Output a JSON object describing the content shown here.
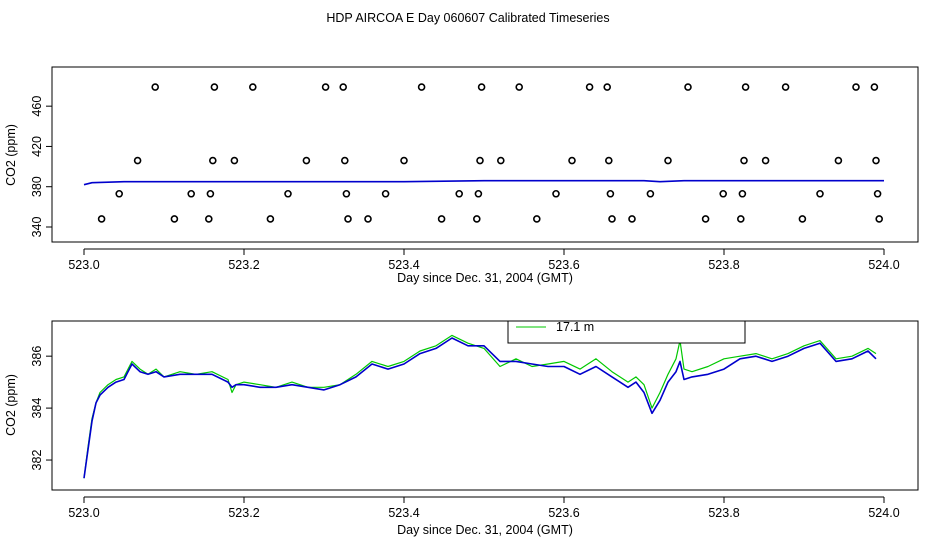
{
  "title": "HDP AIRCOA E  Day 060607  Calibrated Timeseries",
  "colors": {
    "green": "#00c800",
    "blue": "#0000cc",
    "axis": "#000000"
  },
  "chart_data": [
    {
      "type": "scatter",
      "xlabel": "Day since Dec. 31, 2004 (GMT)",
      "ylabel": "CO2 (ppm)",
      "xlim": [
        523.0,
        524.0
      ],
      "ylim": [
        338,
        484
      ],
      "xticks": [
        "523.0",
        "523.2",
        "523.4",
        "523.6",
        "523.8",
        "524.0"
      ],
      "xtick_values": [
        523.0,
        523.2,
        523.4,
        523.6,
        523.8,
        524.0
      ],
      "yticks": [
        "340",
        "380",
        "420",
        "460"
      ],
      "ytick_values": [
        340,
        380,
        420,
        460
      ],
      "series": [
        {
          "style": "points",
          "x": [
            523.022,
            523.044,
            523.067,
            523.089,
            523.113,
            523.134,
            523.156,
            523.158,
            523.161,
            523.163,
            523.188,
            523.211,
            523.233,
            523.255,
            523.278,
            523.302,
            523.324,
            523.326,
            523.328,
            523.33,
            523.355,
            523.377,
            523.4,
            523.422,
            523.447,
            523.469,
            523.491,
            523.493,
            523.495,
            523.497,
            523.521,
            523.544,
            523.566,
            523.59,
            523.61,
            523.632,
            523.654,
            523.656,
            523.658,
            523.66,
            523.685,
            523.708,
            523.73,
            523.755,
            523.777,
            523.799,
            523.821,
            523.823,
            523.825,
            523.827,
            523.852,
            523.877,
            523.898,
            523.92,
            523.943,
            523.965,
            523.988,
            523.99,
            523.992,
            523.994
          ],
          "y": [
            348,
            373,
            406,
            479,
            348,
            373,
            348,
            373,
            406,
            479,
            406,
            479,
            348,
            373,
            406,
            479,
            479,
            406,
            373,
            348,
            348,
            373,
            406,
            479,
            348,
            373,
            348,
            373,
            406,
            479,
            406,
            479,
            348,
            373,
            406,
            479,
            479,
            406,
            373,
            348,
            348,
            373,
            406,
            479,
            348,
            373,
            348,
            373,
            406,
            479,
            406,
            479,
            348,
            373,
            406,
            479,
            479,
            406,
            373,
            348
          ]
        },
        {
          "style": "line-blue",
          "x": [
            523.0,
            523.01,
            523.05,
            523.1,
            523.2,
            523.3,
            523.4,
            523.5,
            523.6,
            523.7,
            523.72,
            523.75,
            523.8,
            523.9,
            524.0
          ],
          "y": [
            382,
            384,
            385,
            385,
            385,
            385,
            385,
            386,
            386,
            386,
            385,
            386,
            386,
            386,
            386
          ]
        }
      ]
    },
    {
      "type": "line",
      "xlabel": "Day since Dec. 31, 2004 (GMT)",
      "ylabel": "CO2 (ppm)",
      "xlim": [
        523.0,
        524.0
      ],
      "ylim": [
        381.0,
        387.2
      ],
      "xticks": [
        "523.0",
        "523.2",
        "523.4",
        "523.6",
        "523.8",
        "524.0"
      ],
      "xtick_values": [
        523.0,
        523.2,
        523.4,
        523.6,
        523.8,
        524.0
      ],
      "yticks": [
        "382",
        "384",
        "386"
      ],
      "ytick_values": [
        382,
        384,
        386
      ],
      "legend": {
        "position": "top-center",
        "entries": [
          "17.1 m"
        ]
      },
      "series": [
        {
          "name": "17.1 m",
          "color": "green",
          "x": [
            523.0,
            523.005,
            523.01,
            523.015,
            523.02,
            523.03,
            523.04,
            523.05,
            523.06,
            523.07,
            523.08,
            523.09,
            523.1,
            523.12,
            523.14,
            523.16,
            523.18,
            523.185,
            523.19,
            523.2,
            523.22,
            523.24,
            523.26,
            523.28,
            523.3,
            523.32,
            523.34,
            523.36,
            523.38,
            523.4,
            523.42,
            523.44,
            523.46,
            523.48,
            523.5,
            523.52,
            523.54,
            523.56,
            523.58,
            523.6,
            523.62,
            523.64,
            523.66,
            523.68,
            523.69,
            523.7,
            523.71,
            523.72,
            523.73,
            523.74,
            523.745,
            523.75,
            523.76,
            523.78,
            523.8,
            523.82,
            523.84,
            523.86,
            523.88,
            523.9,
            523.92,
            523.94,
            523.96,
            523.98,
            523.99
          ],
          "y": [
            381.3,
            382.5,
            383.6,
            384.2,
            384.6,
            384.9,
            385.1,
            385.2,
            385.8,
            385.5,
            385.3,
            385.5,
            385.2,
            385.4,
            385.3,
            385.4,
            385.1,
            384.6,
            384.9,
            385.0,
            384.9,
            384.8,
            385.0,
            384.8,
            384.8,
            384.9,
            385.3,
            385.8,
            385.6,
            385.8,
            386.2,
            386.4,
            386.8,
            386.5,
            386.3,
            385.6,
            385.9,
            385.6,
            385.7,
            385.8,
            385.5,
            385.9,
            385.4,
            385.0,
            385.2,
            384.9,
            384.0,
            384.6,
            385.3,
            385.9,
            386.6,
            385.5,
            385.4,
            385.6,
            385.9,
            386.0,
            386.1,
            385.9,
            386.1,
            386.4,
            386.6,
            385.9,
            386.0,
            386.3,
            386.1
          ]
        },
        {
          "name": "",
          "color": "blue",
          "x": [
            523.0,
            523.005,
            523.01,
            523.015,
            523.02,
            523.03,
            523.04,
            523.05,
            523.06,
            523.07,
            523.08,
            523.09,
            523.1,
            523.12,
            523.14,
            523.16,
            523.18,
            523.185,
            523.19,
            523.2,
            523.22,
            523.24,
            523.26,
            523.28,
            523.3,
            523.32,
            523.34,
            523.36,
            523.38,
            523.4,
            523.42,
            523.44,
            523.46,
            523.48,
            523.5,
            523.52,
            523.54,
            523.56,
            523.58,
            523.6,
            523.62,
            523.64,
            523.66,
            523.68,
            523.69,
            523.7,
            523.71,
            523.72,
            523.73,
            523.74,
            523.745,
            523.75,
            523.76,
            523.78,
            523.8,
            523.82,
            523.84,
            523.86,
            523.88,
            523.9,
            523.92,
            523.94,
            523.96,
            523.98,
            523.99
          ],
          "y": [
            381.3,
            382.4,
            383.5,
            384.2,
            384.5,
            384.8,
            385.0,
            385.1,
            385.7,
            385.4,
            385.3,
            385.4,
            385.2,
            385.3,
            385.3,
            385.3,
            385.0,
            384.8,
            384.9,
            384.9,
            384.8,
            384.8,
            384.9,
            384.8,
            384.7,
            384.9,
            385.2,
            385.7,
            385.5,
            385.7,
            386.1,
            386.3,
            386.7,
            386.4,
            386.4,
            385.8,
            385.8,
            385.7,
            385.6,
            385.6,
            385.3,
            385.6,
            385.2,
            384.8,
            385.0,
            384.6,
            383.8,
            384.3,
            385.0,
            385.4,
            385.8,
            385.1,
            385.2,
            385.3,
            385.5,
            385.9,
            386.0,
            385.8,
            386.0,
            386.3,
            386.5,
            385.8,
            385.9,
            386.2,
            385.9
          ]
        }
      ]
    }
  ]
}
